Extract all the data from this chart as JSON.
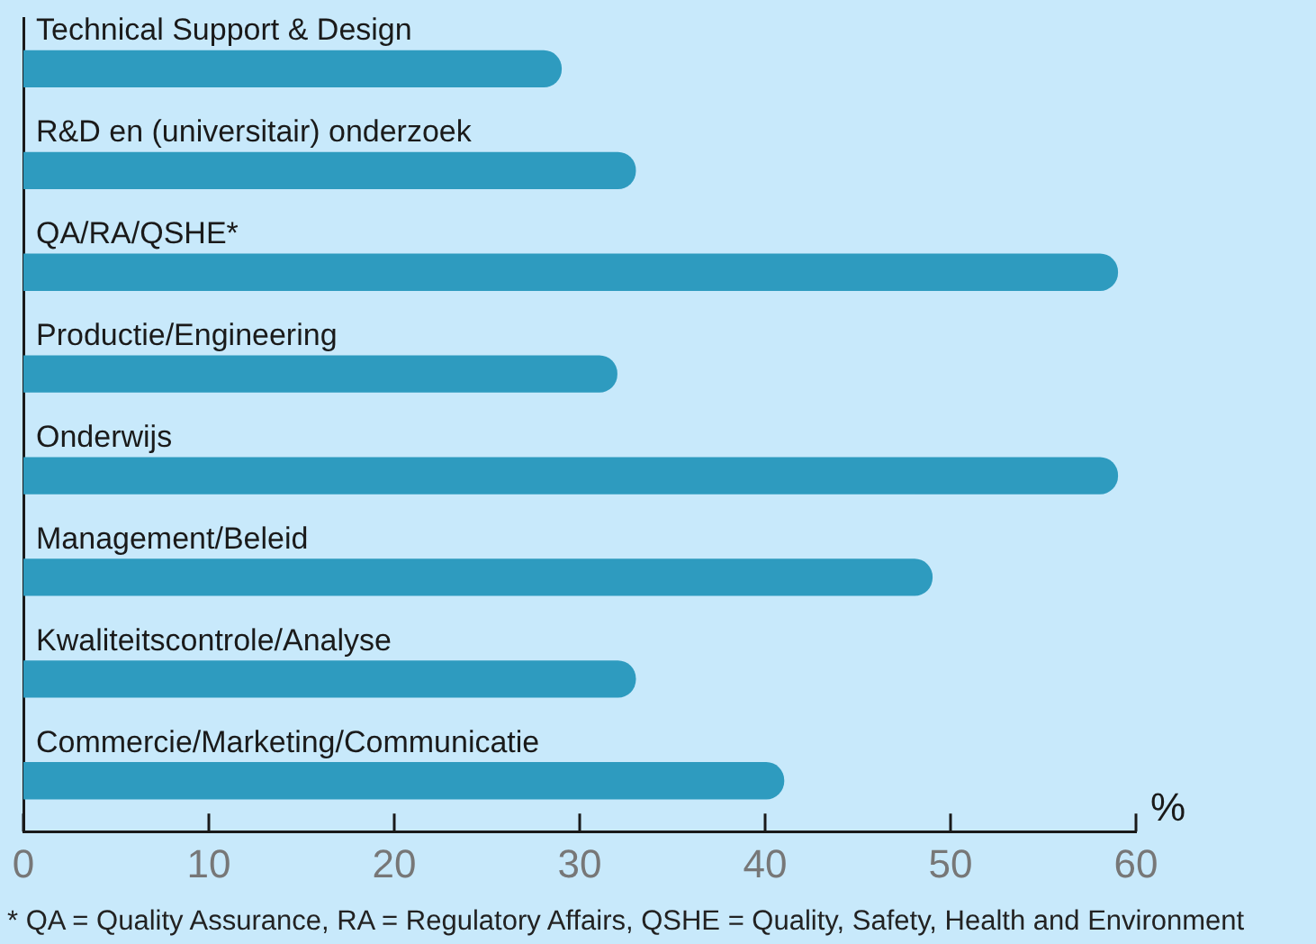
{
  "chart_data": {
    "type": "bar",
    "orientation": "horizontal",
    "categories": [
      "Technical Support & Design",
      "R&D en (universitair) onderzoek",
      "QA/RA/QSHE*",
      "Productie/Engineering",
      "Onderwijs",
      "Management/Beleid",
      "Kwaliteitscontrole/Analyse",
      "Commercie/Marketing/Communicatie"
    ],
    "values": [
      29,
      33,
      59,
      32,
      59,
      49,
      33,
      41
    ],
    "color": "#2e9bbf",
    "xlabel": "%",
    "xlim": [
      0,
      60
    ],
    "xticks": [
      0,
      10,
      20,
      30,
      40,
      50,
      60
    ],
    "grid": false,
    "legend": false,
    "annotations": [
      "* QA = Quality Assurance, RA = Regulatory Affairs, QSHE = Quality, Safety, Health and Environment"
    ]
  }
}
